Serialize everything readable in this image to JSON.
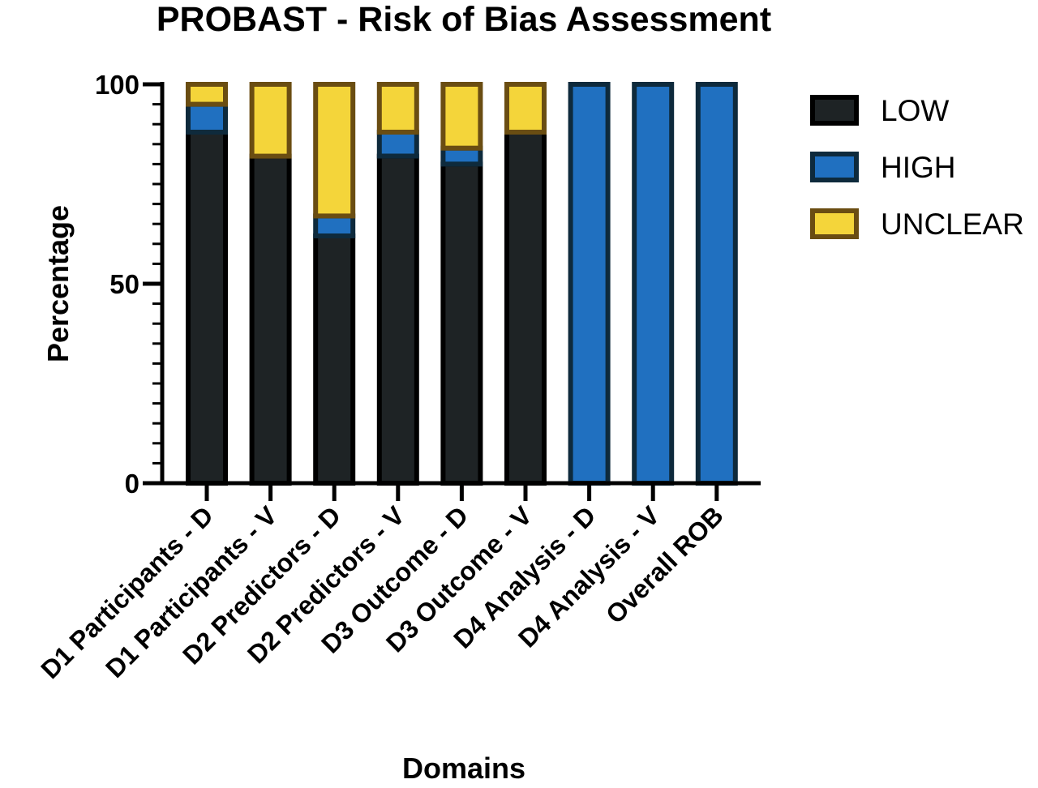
{
  "chart_data": {
    "type": "bar",
    "stacked": true,
    "title": "PROBAST - Risk of Bias Assessment",
    "xlabel": "Domains",
    "ylabel": "Percentage",
    "ylim": [
      0,
      100
    ],
    "yticks": [
      0,
      50,
      100
    ],
    "ytick_labels": [
      "0",
      "50",
      "100"
    ],
    "minor_ticks_per_major": 10,
    "grid": false,
    "legend_position": "right",
    "categories": [
      "D1 Participants - D",
      "D1 Participants - V",
      "D2 Predictors - D",
      "D2 Predictors - V",
      "D3 Outcome - D",
      "D3 Outcome - V",
      "D4 Analysis - D",
      "D4 Analysis - V",
      "Overall ROB"
    ],
    "series": [
      {
        "name": "LOW",
        "fill": "#1e2325",
        "stroke": "#000000",
        "values": [
          88,
          82,
          62,
          82,
          80,
          88,
          0,
          0,
          0
        ]
      },
      {
        "name": "HIGH",
        "fill": "#2070c0",
        "stroke": "#0e2a3c",
        "values": [
          7,
          0,
          5,
          6,
          4,
          0,
          100,
          100,
          100
        ]
      },
      {
        "name": "UNCLEAR",
        "fill": "#f4d53a",
        "stroke": "#6a4d12",
        "values": [
          5,
          18,
          33,
          12,
          16,
          12,
          0,
          0,
          0
        ]
      }
    ]
  }
}
